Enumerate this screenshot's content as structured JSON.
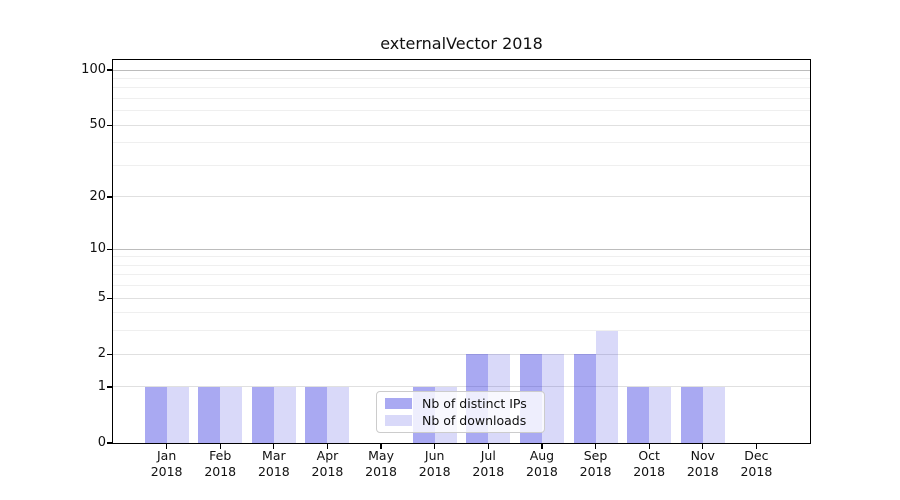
{
  "title": "externalVector 2018",
  "chart_data": {
    "type": "bar",
    "title": "externalVector 2018",
    "categories": [
      {
        "month": "Jan",
        "year": "2018"
      },
      {
        "month": "Feb",
        "year": "2018"
      },
      {
        "month": "Mar",
        "year": "2018"
      },
      {
        "month": "Apr",
        "year": "2018"
      },
      {
        "month": "May",
        "year": "2018"
      },
      {
        "month": "Jun",
        "year": "2018"
      },
      {
        "month": "Jul",
        "year": "2018"
      },
      {
        "month": "Aug",
        "year": "2018"
      },
      {
        "month": "Sep",
        "year": "2018"
      },
      {
        "month": "Oct",
        "year": "2018"
      },
      {
        "month": "Nov",
        "year": "2018"
      },
      {
        "month": "Dec",
        "year": "2018"
      }
    ],
    "series": [
      {
        "name": "Nb of distinct IPs",
        "values": [
          1,
          1,
          1,
          1,
          0,
          1,
          2,
          2,
          2,
          1,
          1,
          0
        ],
        "fill": "rgba(30,30,220,0.38)",
        "swatch_hex": "#a9a9f0"
      },
      {
        "name": "Nb of downloads",
        "values": [
          1,
          1,
          1,
          1,
          0,
          1,
          2,
          2,
          3,
          1,
          1,
          0
        ],
        "fill": "rgba(30,30,220,0.17)",
        "swatch_hex": "#d7d7f7"
      }
    ],
    "yscale": "log1p",
    "ylim": [
      0,
      100
    ],
    "yticks": [
      0,
      1,
      2,
      5,
      10,
      20,
      50,
      100
    ],
    "grid": {
      "minor_values": [
        3,
        4,
        6,
        7,
        8,
        9,
        30,
        40,
        60,
        70,
        80,
        90
      ],
      "major_values": [
        1,
        2,
        5,
        20,
        50
      ],
      "strong_values": [
        10,
        100
      ],
      "colors": {
        "minor": "#efefef",
        "major": "#e0e0e0",
        "strong": "#bcbcbc"
      }
    },
    "legend_position": "lower center",
    "xlabel": "",
    "ylabel": ""
  }
}
